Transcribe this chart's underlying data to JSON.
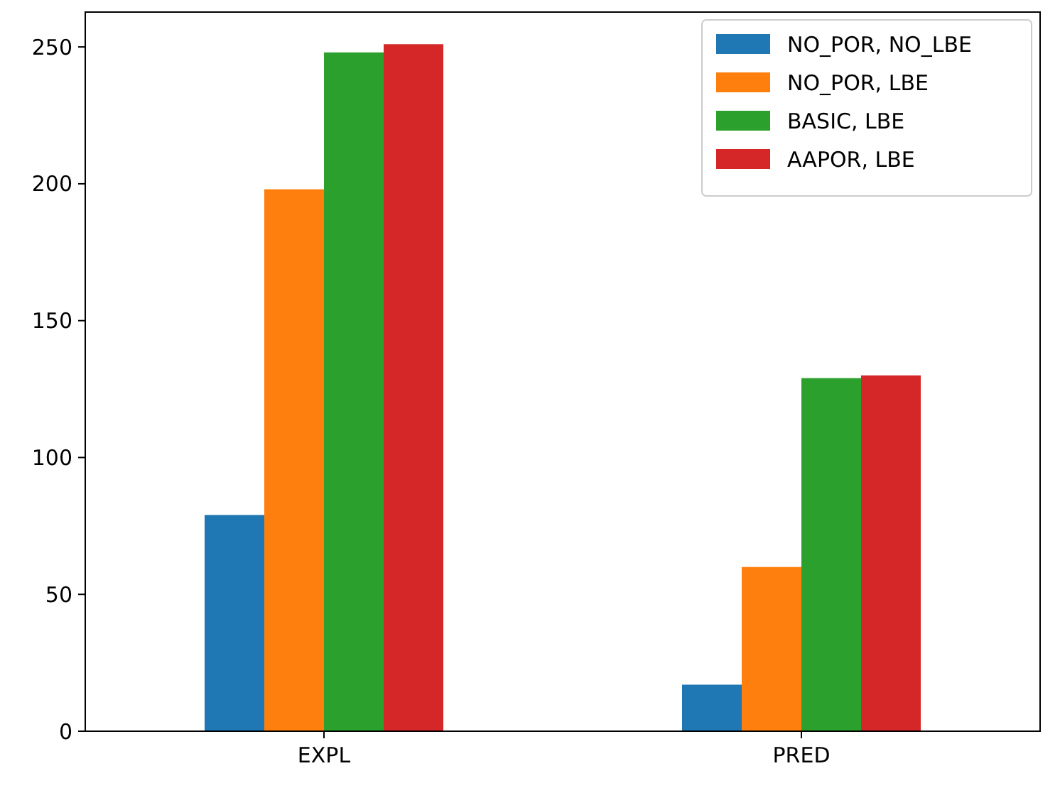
{
  "chart_data": {
    "type": "bar",
    "categories": [
      "EXPL",
      "PRED"
    ],
    "series": [
      {
        "name": "NO_POR, NO_LBE",
        "color": "#1f77b4",
        "values": [
          79,
          17
        ]
      },
      {
        "name": "NO_POR, LBE",
        "color": "#ff7f0e",
        "values": [
          198,
          60
        ]
      },
      {
        "name": "BASIC, LBE",
        "color": "#2ca02c",
        "values": [
          248,
          129
        ]
      },
      {
        "name": "AAPOR, LBE",
        "color": "#d62728",
        "values": [
          251,
          130
        ]
      }
    ],
    "ylim": [
      0,
      263
    ],
    "yticks": [
      0,
      50,
      100,
      150,
      200,
      250
    ],
    "legend": "top right",
    "grid": false
  }
}
